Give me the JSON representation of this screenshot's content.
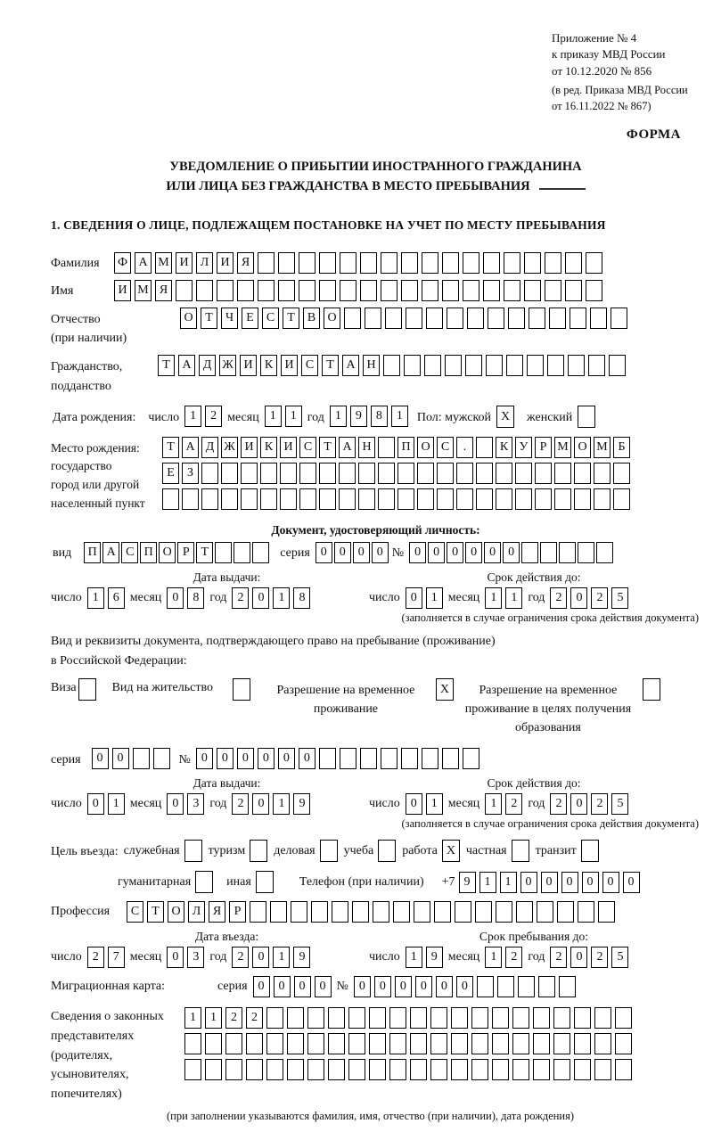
{
  "meta_header": {
    "lines": [
      "Приложение № 4",
      "к приказу МВД России",
      "от 10.12.2020 № 856"
    ],
    "amendment_lines": [
      "(в ред. Приказа МВД России",
      "от 16.11.2022 № 867)"
    ],
    "form_word": "ФОРМА"
  },
  "title": {
    "line1": "УВЕДОМЛЕНИЕ О ПРИБЫТИИ ИНОСТРАННОГО ГРАЖДАНИНА",
    "line2": "ИЛИ ЛИЦА БЕЗ ГРАЖДАНСТВА В МЕСТО ПРЕБЫВАНИЯ"
  },
  "section1_heading": "1. СВЕДЕНИЯ О ЛИЦЕ, ПОДЛЕЖАЩЕМ ПОСТАНОВКЕ НА УЧЕТ ПО МЕСТУ ПРЕБЫВАНИЯ",
  "surname": {
    "label": "Фамилия",
    "chars": "ФАМИЛИЯ",
    "total": 24
  },
  "firstname": {
    "label": "Имя",
    "chars": "ИМЯ",
    "total": 24
  },
  "patronymic": {
    "label": "Отчество",
    "sublabel": "(при наличии)",
    "chars": "ОТЧЕСТВО",
    "total": 22
  },
  "citizenship": {
    "label": "Гражданство,",
    "sublabel": "подданство",
    "chars": "ТАДЖИКИСТАН",
    "total": 23
  },
  "birth": {
    "label": "Дата рождения:",
    "day_label": "число",
    "day": {
      "chars": "12",
      "total": 2
    },
    "month_label": "месяц",
    "month": {
      "chars": "11",
      "total": 2
    },
    "year_label": "год",
    "year": {
      "chars": "1981",
      "total": 4
    },
    "sex_male_label": "Пол: мужской",
    "male_mark": "X",
    "sex_female_label": "женский",
    "female_mark": ""
  },
  "birthplace": {
    "label_line1": "Место рождения:",
    "label_line2": "государство",
    "label_line3": "город или другой",
    "label_line4": "населенный пункт",
    "row1": {
      "chars": "ТАДЖИКИСТАН ПОС. КУРМОМБ",
      "total": 24
    },
    "row2": {
      "chars": "ЕЗ",
      "total": 24
    },
    "row3": {
      "chars": "",
      "total": 24
    }
  },
  "identity_doc": {
    "heading": "Документ, удостоверяющий личность:",
    "kind_label": "вид",
    "kind": {
      "chars": "ПАСПОРТ",
      "total": 10
    },
    "series_label": "серия",
    "series": {
      "chars": "0000",
      "total": 4
    },
    "number_label": "№",
    "number": {
      "chars": "000000",
      "total": 11
    },
    "issue_heading": "Дата выдачи:",
    "valid_heading": "Срок действия до:",
    "issue": {
      "day": {
        "chars": "16",
        "total": 2
      },
      "month": {
        "chars": "08",
        "total": 2
      },
      "year": {
        "chars": "2018",
        "total": 4
      }
    },
    "valid": {
      "day": {
        "chars": "01",
        "total": 2
      },
      "month": {
        "chars": "11",
        "total": 2
      },
      "year": {
        "chars": "2025",
        "total": 4
      }
    },
    "note": "(заполняется в случае ограничения срока действия документа)"
  },
  "residence_doc": {
    "line1": "Вид и реквизиты документа, подтверждающего право на пребывание (проживание)",
    "line2": "в Российской Федерации:",
    "options": [
      {
        "label": "Виза",
        "mark": ""
      },
      {
        "label": "Вид на жительство",
        "mark": ""
      },
      {
        "label": "Разрешение на временное проживание",
        "mark": "X"
      },
      {
        "label": "Разрешение на временное проживание в целях получения образования",
        "mark": ""
      }
    ],
    "series_label": "серия",
    "series": {
      "chars": "00",
      "total": 4
    },
    "number_label": "№",
    "number": {
      "chars": "000000",
      "total": 14
    },
    "issue_heading": "Дата выдачи:",
    "valid_heading": "Срок действия до:",
    "issue": {
      "day": {
        "chars": "01",
        "total": 2
      },
      "month": {
        "chars": "03",
        "total": 2
      },
      "year": {
        "chars": "2019",
        "total": 4
      }
    },
    "valid": {
      "day": {
        "chars": "01",
        "total": 2
      },
      "month": {
        "chars": "12",
        "total": 2
      },
      "year": {
        "chars": "2025",
        "total": 4
      }
    },
    "note": "(заполняется в случае ограничения срока действия документа)",
    "date_labels": {
      "day": "число",
      "month": "месяц",
      "year": "год"
    }
  },
  "purpose": {
    "label": "Цель въезда:",
    "options": [
      {
        "label": "служебная",
        "mark": ""
      },
      {
        "label": "туризм",
        "mark": ""
      },
      {
        "label": "деловая",
        "mark": ""
      },
      {
        "label": "учеба",
        "mark": ""
      },
      {
        "label": "работа",
        "mark": "X"
      },
      {
        "label": "частная",
        "mark": ""
      },
      {
        "label": "транзит",
        "mark": ""
      },
      {
        "label": "гуманитарная",
        "mark": ""
      },
      {
        "label": "иная",
        "mark": ""
      }
    ],
    "phone_label": "Телефон (при наличии)",
    "phone_prefix": "+7",
    "phone": {
      "chars": "911000000",
      "total": 9
    }
  },
  "profession": {
    "label": "Профессия",
    "chars": "СТОЛЯР",
    "total": 24
  },
  "entry": {
    "entry_heading": "Дата въезда:",
    "stay_heading": "Срок пребывания до:",
    "entry_date": {
      "day": {
        "chars": "27",
        "total": 2
      },
      "month": {
        "chars": "03",
        "total": 2
      },
      "year": {
        "chars": "2019",
        "total": 4
      }
    },
    "stay_date": {
      "day": {
        "chars": "19",
        "total": 2
      },
      "month": {
        "chars": "12",
        "total": 2
      },
      "year": {
        "chars": "2025",
        "total": 4
      }
    }
  },
  "migration_card": {
    "label": "Миграционная карта:",
    "series_label": "серия",
    "series": {
      "chars": "0000",
      "total": 4
    },
    "number_label": "№",
    "number": {
      "chars": "000000",
      "total": 11
    }
  },
  "representatives": {
    "label": "Сведения о законных представителях (родителях, усыновителях, попечителях)",
    "row1": {
      "chars": "1122",
      "total": 22
    },
    "row2": {
      "chars": "",
      "total": 22
    },
    "row3": {
      "chars": "",
      "total": 22
    },
    "note": "(при заполнении указываются фамилия, имя, отчество (при наличии), дата рождения)"
  }
}
